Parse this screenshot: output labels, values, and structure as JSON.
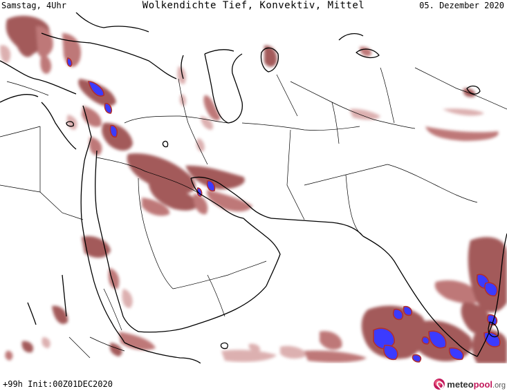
{
  "header": {
    "left": "Samstag, 4Uhr",
    "title": "Wolkendichte  Tief, Konvektiv, Mittel",
    "date": "05. Dezember 2020"
  },
  "footer": {
    "run": "+99h Init:00Z01DEC2020",
    "logo_main": "meteo",
    "logo_accent": "pool",
    "logo_suffix": ".org"
  },
  "colors": {
    "cloud_dark": "#9a4a4a",
    "cloud_mid": "#b86a6a",
    "cloud_light": "#d9a8a8",
    "convective": "#3b3bff",
    "coastline": "#000000",
    "borders": "#000000",
    "background": "#ffffff",
    "brand": "#c2185b"
  }
}
